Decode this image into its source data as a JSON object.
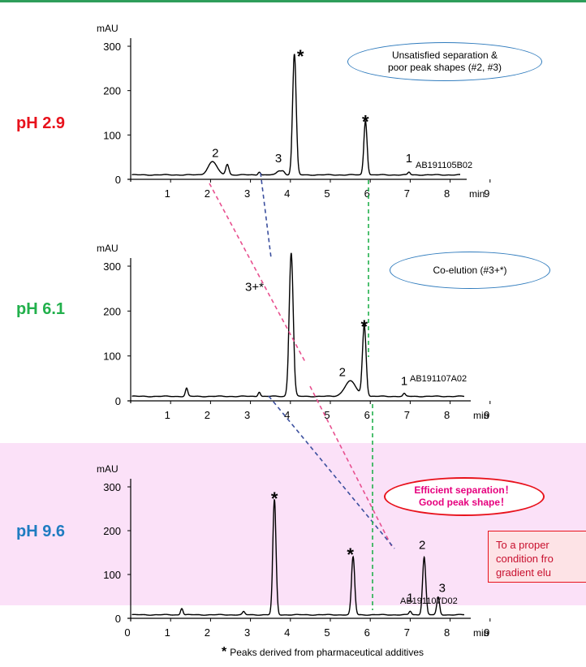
{
  "colors": {
    "ph1": "#e8121c",
    "ph2": "#22b04c",
    "ph3": "#1f7cc1",
    "pink_line": "#e8508f",
    "blue_line": "#3b4f9e",
    "green_line": "#22b04c",
    "band": "#fbe1f8"
  },
  "chart_data": [
    {
      "type": "line",
      "title": "pH 2.9",
      "ylabel": "mAU",
      "xlabel": "min",
      "ylim": [
        0,
        300
      ],
      "xlim": [
        0,
        10
      ],
      "xticks": [
        "1",
        "2",
        "3",
        "4",
        "5",
        "6",
        "7",
        "8",
        "9"
      ],
      "yticks": [
        "0",
        "100",
        "200",
        "300"
      ],
      "baseline": 10,
      "peaks": [
        {
          "x": 2.05,
          "h": 30,
          "w": 0.11
        },
        {
          "x": 2.42,
          "h": 24,
          "w": 0.04
        },
        {
          "x": 3.22,
          "h": 7,
          "w": 0.03
        },
        {
          "x": 3.72,
          "h": 9,
          "w": 0.06
        },
        {
          "x": 3.82,
          "h": 7,
          "w": 0.04
        },
        {
          "x": 4.1,
          "h": 272,
          "w": 0.045
        },
        {
          "x": 5.88,
          "h": 122,
          "w": 0.04
        },
        {
          "x": 6.97,
          "h": 6,
          "w": 0.03
        }
      ],
      "labels": [
        {
          "text": "*",
          "x": 4.25,
          "y": 282,
          "star": true
        },
        {
          "text": "*",
          "x": 5.88,
          "y": 134,
          "star": true
        },
        {
          "text": "2",
          "x": 2.12,
          "y": 50
        },
        {
          "text": "3",
          "x": 3.7,
          "y": 38
        },
        {
          "text": "1",
          "x": 6.97,
          "y": 38
        }
      ],
      "file_id": "AB191105B02"
    },
    {
      "type": "line",
      "title": "pH 6.1",
      "ylabel": "mAU",
      "xlabel": "min",
      "ylim": [
        0,
        300
      ],
      "xlim": [
        0,
        10
      ],
      "xticks": [
        "1",
        "2",
        "3",
        "4",
        "5",
        "6",
        "7",
        "8",
        "9"
      ],
      "yticks": [
        "0",
        "100",
        "200",
        "300"
      ],
      "baseline": 10,
      "peaks": [
        {
          "x": 1.4,
          "h": 18,
          "w": 0.03
        },
        {
          "x": 3.22,
          "h": 10,
          "w": 0.03
        },
        {
          "x": 4.02,
          "h": 320,
          "w": 0.05
        },
        {
          "x": 5.5,
          "h": 34,
          "w": 0.14
        },
        {
          "x": 5.85,
          "h": 158,
          "w": 0.045
        },
        {
          "x": 6.85,
          "h": 6,
          "w": 0.03
        }
      ],
      "labels": [
        {
          "text": "3+*",
          "x": 3.1,
          "y": 245
        },
        {
          "text": "*",
          "x": 5.85,
          "y": 170,
          "star": true
        },
        {
          "text": "2",
          "x": 5.3,
          "y": 55
        },
        {
          "text": "1",
          "x": 6.85,
          "y": 35
        }
      ],
      "file_id": "AB191107A02"
    },
    {
      "type": "line",
      "title": "pH 9.6",
      "ylabel": "mAU",
      "xlabel": "min",
      "ylim": [
        0,
        300
      ],
      "xlim": [
        0,
        10
      ],
      "xticks": [
        "0",
        "1",
        "2",
        "3",
        "4",
        "5",
        "6",
        "7",
        "8",
        "9"
      ],
      "yticks": [
        "0",
        "100",
        "200",
        "300"
      ],
      "baseline": 8,
      "peaks": [
        {
          "x": 1.28,
          "h": 15,
          "w": 0.03
        },
        {
          "x": 2.83,
          "h": 7,
          "w": 0.03
        },
        {
          "x": 3.6,
          "h": 262,
          "w": 0.04
        },
        {
          "x": 5.57,
          "h": 132,
          "w": 0.04
        },
        {
          "x": 7.0,
          "h": 8,
          "w": 0.03
        },
        {
          "x": 7.35,
          "h": 132,
          "w": 0.04
        },
        {
          "x": 7.7,
          "h": 40,
          "w": 0.035
        }
      ],
      "labels": [
        {
          "text": "*",
          "x": 3.6,
          "y": 278,
          "star": true
        },
        {
          "text": "*",
          "x": 5.5,
          "y": 150,
          "star": true
        },
        {
          "text": "2",
          "x": 7.3,
          "y": 158
        },
        {
          "text": "1",
          "x": 7.0,
          "y": 38
        },
        {
          "text": "3",
          "x": 7.8,
          "y": 60
        }
      ],
      "file_id": "AB191107D02"
    }
  ],
  "callouts": {
    "c1": [
      "Unsatisfied separation &",
      "poor peak shapes (#2, #3)"
    ],
    "c2": [
      "Co-elution (#3+*)"
    ],
    "c3": [
      "Efficient separation！",
      "Good peak shape！"
    ]
  },
  "note": [
    "To a proper",
    "condition fro",
    "gradient elu"
  ],
  "footnote": {
    "star": "*",
    "text": "Peaks derived from pharmaceutical additives"
  }
}
